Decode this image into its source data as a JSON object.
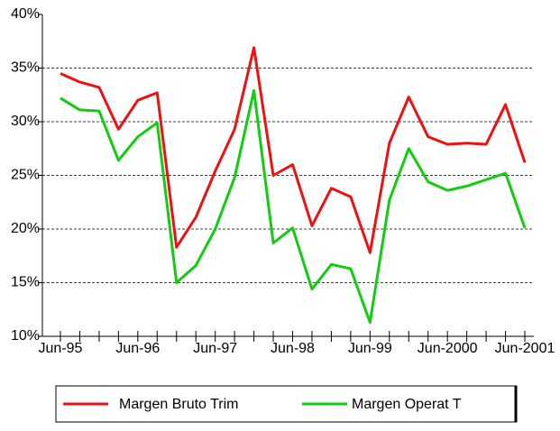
{
  "chart_data": {
    "type": "line",
    "categories": [
      "Jun-95",
      null,
      null,
      null,
      "Jun-96",
      null,
      null,
      null,
      "Jun-97",
      null,
      null,
      null,
      "Jun-98",
      null,
      null,
      null,
      "Jun-99",
      null,
      null,
      null,
      "Jun-2000",
      null,
      null,
      null,
      "Jun-2001"
    ],
    "series": [
      {
        "name": "Margen Bruto Trim",
        "color": "#ee1111",
        "values": [
          34.5,
          33.7,
          33.2,
          29.3,
          32.0,
          32.7,
          18.3,
          21.1,
          25.4,
          29.3,
          36.9,
          25.0,
          26.0,
          20.3,
          23.8,
          23.0,
          17.8,
          28.0,
          32.3,
          28.6,
          27.9,
          28.0,
          27.9,
          31.6,
          26.2
        ]
      },
      {
        "name": "Margen Operat T",
        "color": "#11cc11",
        "values": [
          32.2,
          31.1,
          31.0,
          26.4,
          28.6,
          29.9,
          15.0,
          16.6,
          20.0,
          24.8,
          32.9,
          18.7,
          20.1,
          14.4,
          16.7,
          16.3,
          11.3,
          22.7,
          27.5,
          24.4,
          23.6,
          24.0,
          24.6,
          25.2,
          20.1
        ]
      }
    ],
    "ylim": [
      10,
      40
    ],
    "yticks": [
      {
        "value": 10,
        "label": "10%"
      },
      {
        "value": 15,
        "label": "15%"
      },
      {
        "value": 20,
        "label": "20%"
      },
      {
        "value": 25,
        "label": "25%"
      },
      {
        "value": 30,
        "label": "30%"
      },
      {
        "value": 35,
        "label": "35%"
      },
      {
        "value": 40,
        "label": "40%"
      }
    ],
    "grid": true,
    "legend": "bottom"
  }
}
